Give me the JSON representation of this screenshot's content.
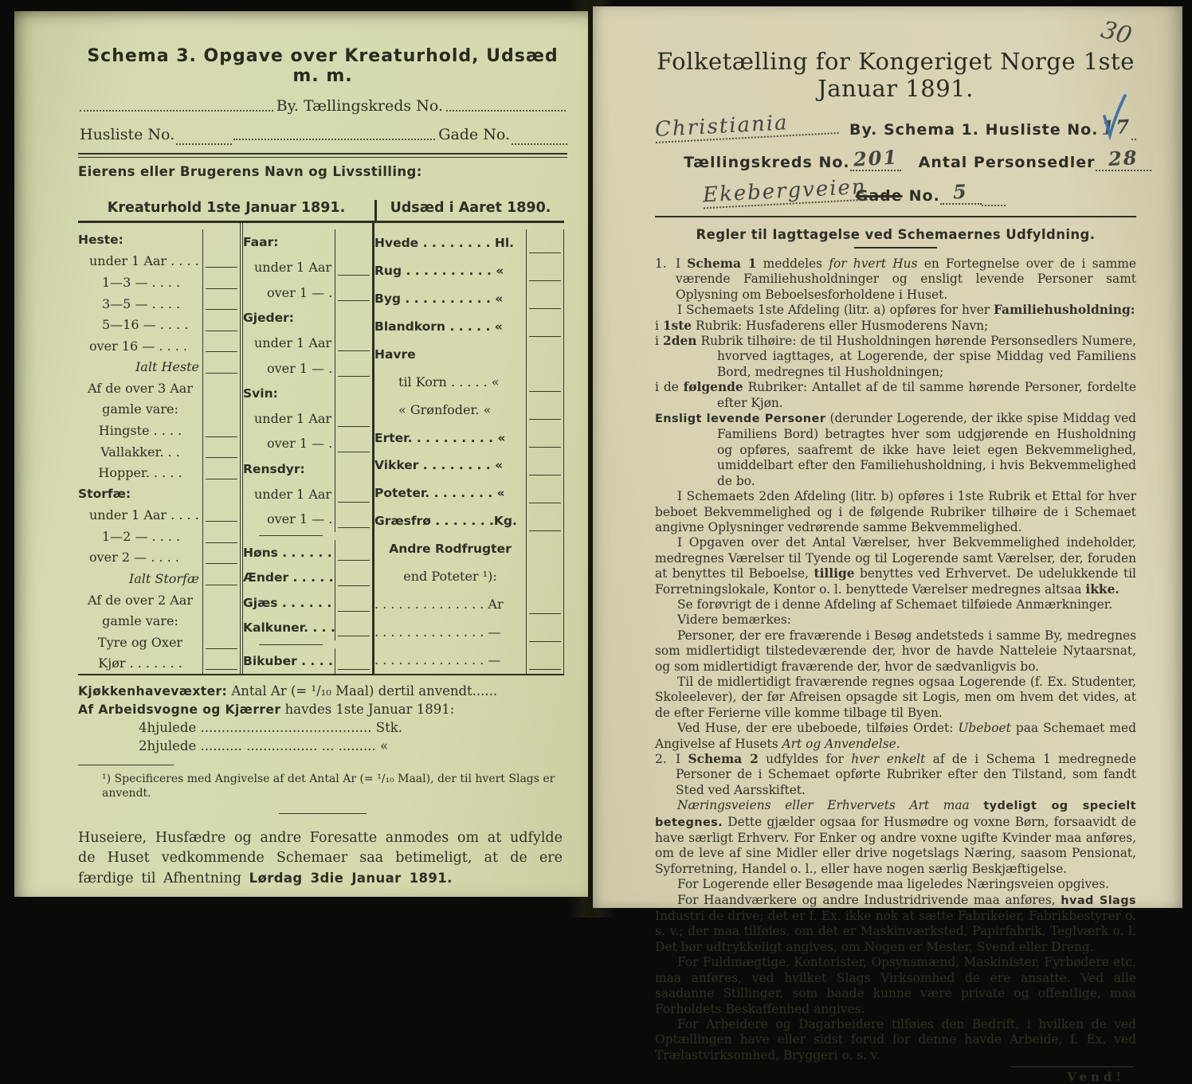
{
  "left": {
    "title": "Schema 3.  Opgave over Kreaturhold, Udsæd m. m.",
    "by_kreds_label": "By.  Tællingskreds No.",
    "husliste_label": "Husliste No.",
    "gade_label": "Gade No.",
    "owner_label": "Eierens eller Brugerens Navn og Livsstilling:",
    "table": {
      "header_left": "Kreaturhold 1ste Januar 1891.",
      "header_right": "Udsæd i Aaret 1890.",
      "col1": [
        {
          "t": "Heste:",
          "s": "b"
        },
        {
          "t": "under 1 Aar . . . .",
          "ind": 1,
          "line": true
        },
        {
          "t": "1—3  —  . . . .",
          "ind": 2,
          "line": true
        },
        {
          "t": "3—5  —  . . . .",
          "ind": 2,
          "line": true
        },
        {
          "t": "5—16 —  . . . .",
          "ind": 2,
          "line": true
        },
        {
          "t": "over 16 — . . . .",
          "ind": 1,
          "line": true
        },
        {
          "t": "Ialt Heste",
          "s": "i",
          "align": "r",
          "line": true
        },
        {
          "t": "Af de over 3 Aar",
          "align": "c"
        },
        {
          "t": "gamle vare:",
          "align": "c"
        },
        {
          "t": "Hingste . . . .",
          "align": "c",
          "line": true
        },
        {
          "t": "Vallakker. . .",
          "align": "c",
          "line": true
        },
        {
          "t": "Hopper. . . . .",
          "align": "c",
          "line": true
        },
        {
          "t": "Storfæ:",
          "s": "b"
        },
        {
          "t": "under 1 Aar . . . .",
          "ind": 1,
          "line": true
        },
        {
          "t": "1—2  —  . . . .",
          "ind": 2,
          "line": true
        },
        {
          "t": "over 2  —  . . . .",
          "ind": 1,
          "line": true
        },
        {
          "t": "Ialt Storfæ",
          "s": "i",
          "align": "r",
          "line": true
        },
        {
          "t": "Af de over 2 Aar",
          "align": "c"
        },
        {
          "t": "gamle vare:",
          "align": "c"
        },
        {
          "t": "Tyre og Oxer",
          "align": "c",
          "line": true
        },
        {
          "t": "Kjør . . . . . . .",
          "align": "c",
          "line": true
        }
      ],
      "col2": [
        {
          "t": "Faar:",
          "s": "b"
        },
        {
          "t": "under 1 Aar . . . .",
          "ind": 1,
          "line": true
        },
        {
          "t": "over 1  —  . . . .",
          "ind": 2,
          "line": true
        },
        {
          "t": "Gjeder:",
          "s": "b"
        },
        {
          "t": "under 1 Aar . . . .",
          "ind": 1,
          "line": true
        },
        {
          "t": "over 1  —  . . . .",
          "ind": 2,
          "line": true
        },
        {
          "t": "Svin:",
          "s": "b"
        },
        {
          "t": "under 1 Aar . . . .",
          "ind": 1,
          "line": true
        },
        {
          "t": "over 1  —  . . . .",
          "ind": 2,
          "line": true
        },
        {
          "t": "Rensdyr:",
          "s": "b"
        },
        {
          "t": "under 1 Aar . . . .",
          "ind": 1,
          "line": true
        },
        {
          "t": "over 1  —  . . . .",
          "ind": 2,
          "line": true
        },
        {
          "rule": true
        },
        {
          "t": "Høns . . . . . . . . . . .",
          "s": "b",
          "line": true
        },
        {
          "t": "Ænder . . . . . . . . . .",
          "s": "b",
          "line": true
        },
        {
          "t": "Gjæs  . . . . . . . . . .",
          "s": "b",
          "line": true
        },
        {
          "t": "Kalkuner. . . . . . . . .",
          "s": "b",
          "line": true
        },
        {
          "rule": true
        },
        {
          "t": "Bikuber . . . . . . . . .",
          "s": "b",
          "line": true
        }
      ],
      "col3": [
        {
          "t": "Hvede . . . . . . . . Hl.",
          "s": "b",
          "line": true
        },
        {
          "t": "Rug . . . . . . . . . .  «",
          "s": "b",
          "line": true
        },
        {
          "t": "Byg . . . . . . . . . .  «",
          "s": "b",
          "line": true
        },
        {
          "t": "Blandkorn . . . . .  «",
          "s": "b",
          "line": true
        },
        {
          "t": "Havre",
          "s": "b"
        },
        {
          "t": "til Korn . . . . .  «",
          "ind": 2,
          "line": true
        },
        {
          "t": "«  Grønfoder.  «",
          "ind": 2,
          "line": true
        },
        {
          "t": "Erter. . . . . . . . . .  «",
          "s": "b",
          "line": true
        },
        {
          "t": "Vikker . . . . . . . .  «",
          "s": "b",
          "line": true
        },
        {
          "t": "Poteter. . . . . . . .  «",
          "s": "b",
          "line": true
        },
        {
          "t": "Græsfrø . . . . . . .Kg.",
          "s": "b",
          "line": true
        },
        {
          "t": "Andre  Rodfrugter",
          "s": "b",
          "align": "c"
        },
        {
          "t": "end Poteter ¹):",
          "align": "c"
        },
        {
          "t": ". . . . . . . . . . . . . . Ar",
          "line": true
        },
        {
          "t": ". . . . . . . . . . . . . .  —",
          "line": true
        },
        {
          "t": ". . . . . . . . . . . . . .  —",
          "line": true
        }
      ]
    },
    "misc": [
      {
        "cls": "kv",
        "seg": [
          [
            "Kjøkkenhavevæxter:",
            "bs"
          ],
          [
            "  Antal Ar (= ¹/₁₀ Maal) dertil anvendt......",
            ""
          ]
        ]
      },
      {
        "cls": "kv",
        "seg": [
          [
            "Af Arbeidsvogne og Kjærrer",
            "bs"
          ],
          [
            " havdes 1ste Januar 1891:",
            ""
          ]
        ]
      },
      {
        "cls": "wheel",
        "seg": [
          [
            "4hjulede ......................................... Stk.",
            ""
          ]
        ]
      },
      {
        "cls": "wheel",
        "seg": [
          [
            "2hjulede ..........  .................  ...  .........   «",
            ""
          ]
        ]
      }
    ],
    "footnote": "¹) Specificeres med Angivelse af det Antal Ar (= ¹/₁₀ Maal), der til hvert Slags er anvendt.",
    "closing": [
      {
        "cls": "closing-p",
        "seg": [
          [
            "Huseiere, Husfædre og andre Foresatte anmodes om at udfylde de Huset vedkommende Schemaer saa betimeligt, at de ere færdige til Afhentning ",
            ""
          ],
          [
            "Lørdag 3die Januar 1891.",
            "bs"
          ]
        ]
      }
    ]
  },
  "right": {
    "page_number": "30",
    "title": "Folketælling for Kongeriget Norge 1ste Januar 1891.",
    "hw_city": "Christiania",
    "by_schema_label": "By.  Schema 1.  Husliste No.",
    "hw_husliste_no": "17",
    "tkreds_label": "Tællingskreds No.",
    "hw_tkreds_no": "201",
    "personsedler_label": "Antal Personsedler",
    "hw_personsedler": "28",
    "hw_street": "Ekebergveien",
    "gade_label": "Gade",
    "no_label": "No.",
    "hw_gade_no": "5",
    "check_color": "#3f72a8",
    "rules_heading": "Regler til Iagttagelse ved Schemaernes Udfyldning.",
    "rules": [
      {
        "cls": "num",
        "num": "1.",
        "seg": [
          [
            "I ",
            ""
          ],
          [
            "Schema 1",
            "b"
          ],
          [
            " meddeles ",
            ""
          ],
          [
            "for hvert Hus",
            "i"
          ],
          [
            " en Fortegnelse over de i samme værende Familiehusholdninger og ensligt levende Personer samt Oplysning om Beboelsesforholdene i Huset.",
            ""
          ]
        ]
      },
      {
        "cls": "ind",
        "seg": [
          [
            "I Schemaets 1ste Afdeling (litr. a) opføres for hver ",
            ""
          ],
          [
            "Familiehusholdning:",
            "b"
          ]
        ]
      },
      {
        "cls": "hang",
        "seg": [
          [
            "i ",
            ""
          ],
          [
            "1ste",
            "b"
          ],
          [
            " Rubrik: Husfaderens eller Husmoderens Navn;",
            ""
          ]
        ]
      },
      {
        "cls": "hang",
        "seg": [
          [
            "i ",
            ""
          ],
          [
            "2den",
            "b"
          ],
          [
            " Rubrik tilhøire: de til Husholdningen hørende Personsedlers Numere, hvorved iagttages, at Logerende, der spise Middag ved Familiens Bord, medregnes til Husholdningen;",
            ""
          ]
        ]
      },
      {
        "cls": "hang",
        "seg": [
          [
            "i de ",
            ""
          ],
          [
            "følgende",
            "b"
          ],
          [
            " Rubriker: Antallet af de til samme hørende Personer, fordelte efter Kjøn.",
            ""
          ]
        ]
      },
      {
        "cls": "hang",
        "seg": [
          [
            "Ensligt levende Personer",
            "bs"
          ],
          [
            " (derunder Logerende, der ikke spise Middag ved Familiens Bord) betragtes hver som udgjørende en Husholdning og opføres, saafremt de ikke have leiet egen Bekvemmelighed, umiddelbart efter den Familiehusholdning, i hvis Bekvemmelighed de bo.",
            ""
          ]
        ]
      },
      {
        "cls": "ind",
        "seg": [
          [
            "I Schemaets 2den Afdeling (litr. b) opføres i 1ste Rubrik et Ettal for hver beboet Bekvemmelighed og i de følgende Rubriker tilhøire de i Schemaet angivne Oplysninger vedrørende samme Bekvemmelighed.",
            ""
          ]
        ]
      },
      {
        "cls": "ind",
        "seg": [
          [
            "I Opgaven over det Antal Værelser, hver Bekvemmelighed indeholder, medregnes Værelser til Tyende og til Logerende samt Værelser, der, foruden at benyttes til Beboelse, ",
            ""
          ],
          [
            "tillige",
            "b"
          ],
          [
            " benyttes ved Erhvervet.  De udelukkende til Forretningslokale, Kontor o. l. benyttede Værelser medregnes altsaa ",
            ""
          ],
          [
            "ikke.",
            "b"
          ]
        ]
      },
      {
        "cls": "ind",
        "seg": [
          [
            "Se forøvrigt de i denne Afdeling af Schemaet tilføiede Anmærkninger.",
            ""
          ]
        ]
      },
      {
        "cls": "ind",
        "seg": [
          [
            "Videre bemærkes:",
            ""
          ]
        ]
      },
      {
        "cls": "ind",
        "seg": [
          [
            "Personer, der ere fraværende i Besøg andetsteds i samme By, medregnes som midlertidigt tilstedeværende der, hvor de havde Natteleie Nytaarsnat, og som midlertidigt fraværende der, hvor de sædvanligvis bo.",
            ""
          ]
        ]
      },
      {
        "cls": "ind",
        "seg": [
          [
            "Til de midlertidigt fraværende regnes ogsaa Logerende (f. Ex. Studenter, Skoleelever), der før Afreisen opsagde sit Logis, men om hvem det vides, at de efter Ferierne ville komme tilbage til Byen.",
            ""
          ]
        ]
      },
      {
        "cls": "ind",
        "seg": [
          [
            "Ved Huse, der ere ubeboede, tilføies Ordet: ",
            ""
          ],
          [
            "Ubeboet",
            "i"
          ],
          [
            " paa Schemaet med Angivelse af Husets ",
            ""
          ],
          [
            "Art og Anvendelse.",
            "i"
          ]
        ]
      },
      {
        "cls": "num",
        "num": "2.",
        "seg": [
          [
            "I ",
            ""
          ],
          [
            "Schema 2",
            "b"
          ],
          [
            " udfyldes for ",
            ""
          ],
          [
            "hver enkelt",
            "i"
          ],
          [
            " af de i Schema 1 medregnede Personer de i Schemaet opførte Rubriker efter den Tilstand, som fandt Sted ved Aarsskiftet.",
            ""
          ]
        ]
      },
      {
        "cls": "ind",
        "seg": [
          [
            "Næringsveiens eller Erhvervets Art maa",
            "i"
          ],
          [
            " ",
            ""
          ],
          [
            "tydeligt og specielt betegnes.",
            "bs"
          ],
          [
            " Dette gjælder ogsaa for Husmødre og voxne Børn, forsaavidt de have særligt Erhverv.  For Enker og andre voxne ugifte Kvinder maa anføres, om de leve af sine Midler eller drive nogetslags Næring, saasom Pensionat, Syforretning, Handel o. l., eller have nogen særlig Beskjæftigelse.",
            ""
          ]
        ]
      },
      {
        "cls": "ind",
        "seg": [
          [
            "For Logerende eller Besøgende maa ligeledes Næringsveien opgives.",
            ""
          ]
        ]
      },
      {
        "cls": "ind",
        "seg": [
          [
            "For Haandværkere og andre Industridrivende maa anføres, ",
            ""
          ],
          [
            "hvad Slags",
            "bs"
          ],
          [
            " Industri de drive; det er f. Ex. ikke nok at sætte Fabrikeier, Fabrikbestyrer o. s. v.; der maa tilføies, om det er Maskinværksted, Papirfabrik, Teglværk o. l.  Det bør udtrykkeligt angives, om Nogen er Mester, Svend eller Dreng.",
            ""
          ]
        ]
      },
      {
        "cls": "ind",
        "seg": [
          [
            "For Fuldmægtige, Kontorister, Opsynsmænd, Maskinister, Fyrbødere etc. maa anføres, ved hvilket Slags Virksomhed de ere ansatte.  Ved alle saadanne Stillinger, som baade kunne være private og offentlige, maa Forholdets Beskaffenhed angives.",
            ""
          ]
        ]
      },
      {
        "cls": "ind",
        "seg": [
          [
            "For Arbeidere og Dagarbeidere tilføies den Bedrift, i hvilken de ved Optællingen have eller sidst forud for denne havde Arbeide, f. Ex. ved Trælastvirksomhed, Bryggeri o. s. v.",
            ""
          ]
        ]
      }
    ],
    "vend_label": "Vend!"
  }
}
